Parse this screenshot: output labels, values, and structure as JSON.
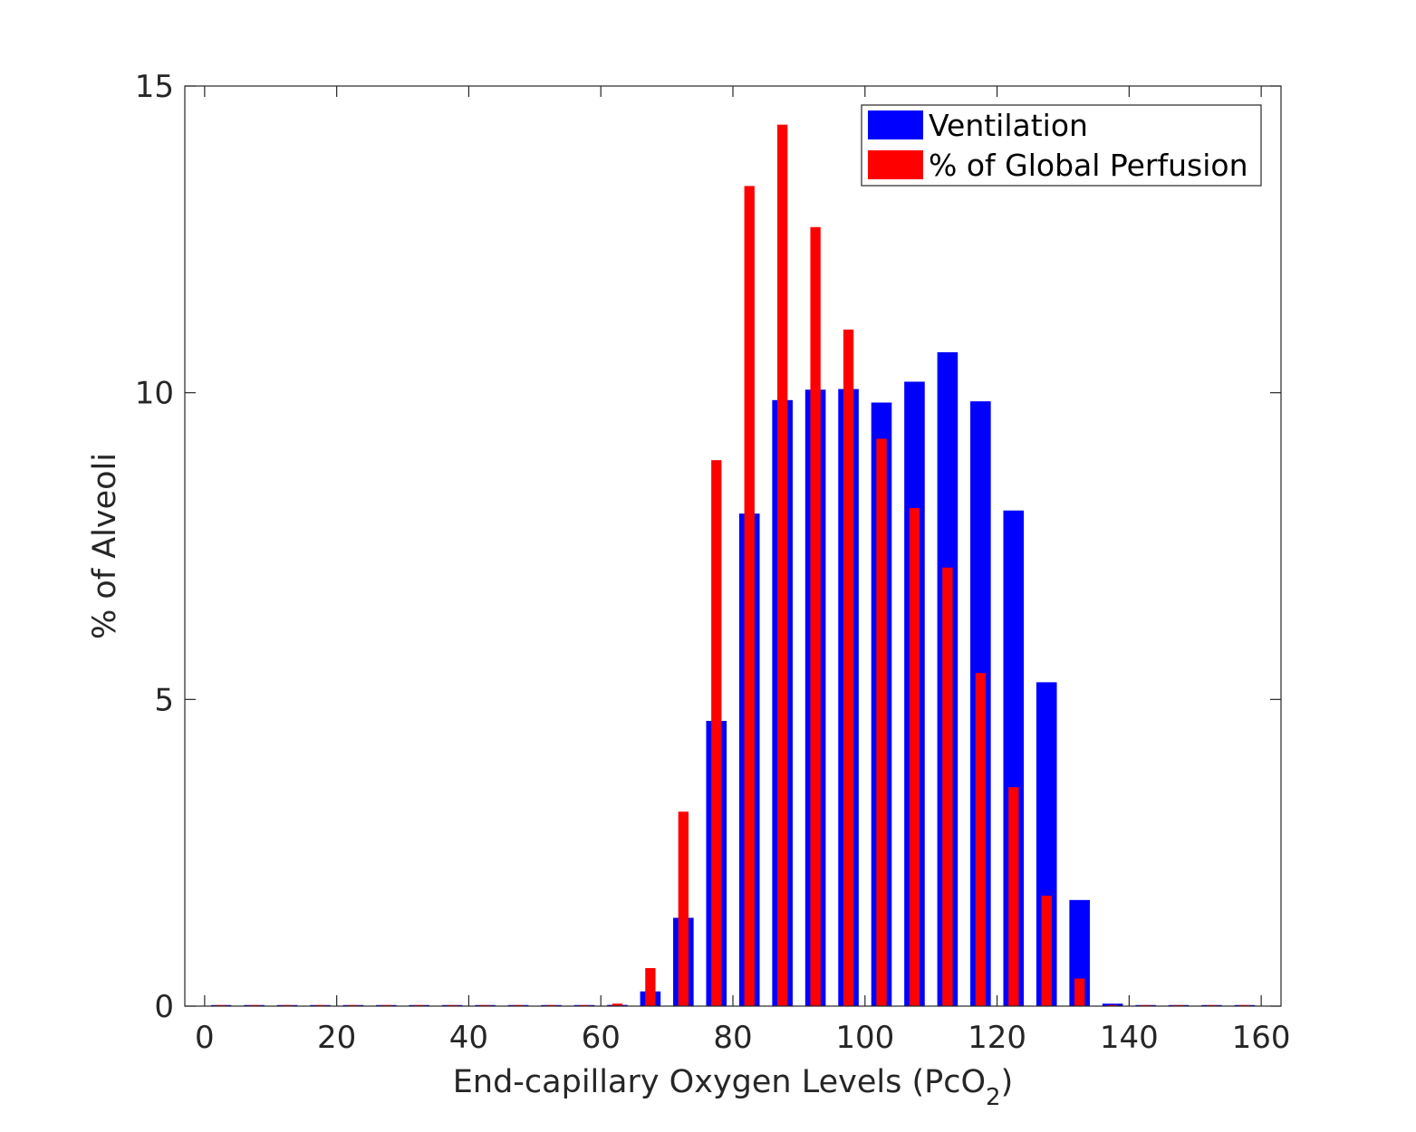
{
  "chart_data": {
    "type": "bar",
    "xlabel": "End-capillary Oxygen Levels (PcO",
    "xlabel_subscript": "2",
    "xlabel_suffix": ")",
    "ylabel": "% of Alveoli",
    "xlim": [
      -3,
      163
    ],
    "ylim": [
      0,
      15
    ],
    "xticks": [
      0,
      20,
      40,
      60,
      80,
      100,
      120,
      140,
      160
    ],
    "yticks": [
      0,
      5,
      10,
      15
    ],
    "grid": false,
    "legend_position": "top-right",
    "x": [
      2.5,
      7.5,
      12.5,
      17.5,
      22.5,
      27.5,
      32.5,
      37.5,
      42.5,
      47.5,
      52.5,
      57.5,
      62.5,
      67.5,
      72.5,
      77.5,
      82.5,
      87.5,
      92.5,
      97.5,
      102.5,
      107.5,
      112.5,
      117.5,
      122.5,
      127.5,
      132.5,
      137.5,
      142.5,
      147.5,
      152.5,
      157.5
    ],
    "series": [
      {
        "name": "Ventilation",
        "color": "#0000ff",
        "bar_width": 3.1,
        "values": [
          0,
          0,
          0,
          0,
          0,
          0,
          0,
          0,
          0,
          0,
          0,
          0,
          0.02,
          0.24,
          1.44,
          4.65,
          8.03,
          9.88,
          10.05,
          10.06,
          9.84,
          10.18,
          10.66,
          9.86,
          8.08,
          5.28,
          1.73,
          0.04,
          0,
          0,
          0,
          0
        ]
      },
      {
        "name": "% of Global Perfusion",
        "color": "#ff0000",
        "bar_width": 1.55,
        "values": [
          0,
          0,
          0,
          0,
          0,
          0,
          0,
          0,
          0,
          0,
          0,
          0,
          0.04,
          0.62,
          3.17,
          8.9,
          13.37,
          14.37,
          12.7,
          11.03,
          9.25,
          8.12,
          7.15,
          5.43,
          3.57,
          1.8,
          0.45,
          0,
          0,
          0,
          0,
          0
        ]
      }
    ]
  }
}
